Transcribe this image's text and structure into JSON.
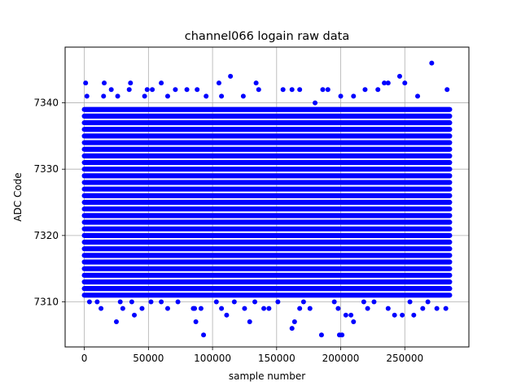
{
  "chart_data": {
    "type": "scatter",
    "title": "channel066 logain raw data",
    "xlabel": "sample number",
    "ylabel": "ADC Code",
    "xlim": [
      -15000,
      300000
    ],
    "ylim": [
      7303.2,
      7348.4
    ],
    "x_ticks": [
      0,
      50000,
      100000,
      150000,
      200000,
      250000
    ],
    "x_tick_labels": [
      "0",
      "50000",
      "100000",
      "150000",
      "200000",
      "250000"
    ],
    "y_ticks": [
      7310,
      7320,
      7330,
      7340
    ],
    "y_tick_labels": [
      "7310",
      "7320",
      "7330",
      "7340"
    ],
    "grid": true,
    "legend": "none",
    "color": "#0000ff",
    "series": [
      {
        "dense_band": {
          "x_range": [
            0,
            285000
          ],
          "y_range": [
            7311,
            7339
          ],
          "step": 1
        },
        "outliers": [
          [
            1000,
            7343
          ],
          [
            2000,
            7341
          ],
          [
            15000,
            7341
          ],
          [
            15500,
            7343
          ],
          [
            21000,
            7342
          ],
          [
            26000,
            7341
          ],
          [
            35000,
            7342
          ],
          [
            36000,
            7343
          ],
          [
            47000,
            7341
          ],
          [
            49000,
            7342
          ],
          [
            53000,
            7342
          ],
          [
            60000,
            7343
          ],
          [
            65000,
            7341
          ],
          [
            71000,
            7342
          ],
          [
            80000,
            7342
          ],
          [
            88000,
            7342
          ],
          [
            95000,
            7341
          ],
          [
            105000,
            7343
          ],
          [
            107000,
            7341
          ],
          [
            114000,
            7344
          ],
          [
            124000,
            7341
          ],
          [
            134000,
            7343
          ],
          [
            136000,
            7342
          ],
          [
            155000,
            7342
          ],
          [
            162000,
            7342
          ],
          [
            168000,
            7342
          ],
          [
            180000,
            7340
          ],
          [
            186000,
            7342
          ],
          [
            190000,
            7342
          ],
          [
            200000,
            7341
          ],
          [
            210000,
            7341
          ],
          [
            219000,
            7342
          ],
          [
            229000,
            7342
          ],
          [
            234000,
            7343
          ],
          [
            237000,
            7343
          ],
          [
            246000,
            7344
          ],
          [
            250000,
            7343
          ],
          [
            260000,
            7341
          ],
          [
            271000,
            7346
          ],
          [
            283000,
            7342
          ],
          [
            4000,
            7310
          ],
          [
            10000,
            7310
          ],
          [
            13000,
            7309
          ],
          [
            25000,
            7307
          ],
          [
            28000,
            7310
          ],
          [
            30000,
            7309
          ],
          [
            37000,
            7310
          ],
          [
            39000,
            7308
          ],
          [
            45000,
            7309
          ],
          [
            52000,
            7310
          ],
          [
            60000,
            7310
          ],
          [
            65000,
            7309
          ],
          [
            73000,
            7310
          ],
          [
            85000,
            7309
          ],
          [
            86000,
            7309
          ],
          [
            87000,
            7307
          ],
          [
            91000,
            7309
          ],
          [
            93000,
            7305
          ],
          [
            103000,
            7310
          ],
          [
            107000,
            7309
          ],
          [
            111000,
            7308
          ],
          [
            117000,
            7310
          ],
          [
            125000,
            7309
          ],
          [
            129000,
            7307
          ],
          [
            133000,
            7310
          ],
          [
            140000,
            7309
          ],
          [
            144000,
            7309
          ],
          [
            151000,
            7310
          ],
          [
            162000,
            7306
          ],
          [
            164000,
            7307
          ],
          [
            168000,
            7309
          ],
          [
            171000,
            7310
          ],
          [
            176000,
            7309
          ],
          [
            185000,
            7305
          ],
          [
            195000,
            7310
          ],
          [
            198000,
            7309
          ],
          [
            199000,
            7305
          ],
          [
            201000,
            7305
          ],
          [
            204000,
            7308
          ],
          [
            208000,
            7308
          ],
          [
            210000,
            7307
          ],
          [
            218000,
            7310
          ],
          [
            221000,
            7309
          ],
          [
            226000,
            7310
          ],
          [
            237000,
            7309
          ],
          [
            242000,
            7308
          ],
          [
            248000,
            7308
          ],
          [
            254000,
            7310
          ],
          [
            257000,
            7308
          ],
          [
            264000,
            7309
          ],
          [
            268000,
            7310
          ],
          [
            275000,
            7309
          ],
          [
            282000,
            7309
          ]
        ]
      }
    ]
  }
}
